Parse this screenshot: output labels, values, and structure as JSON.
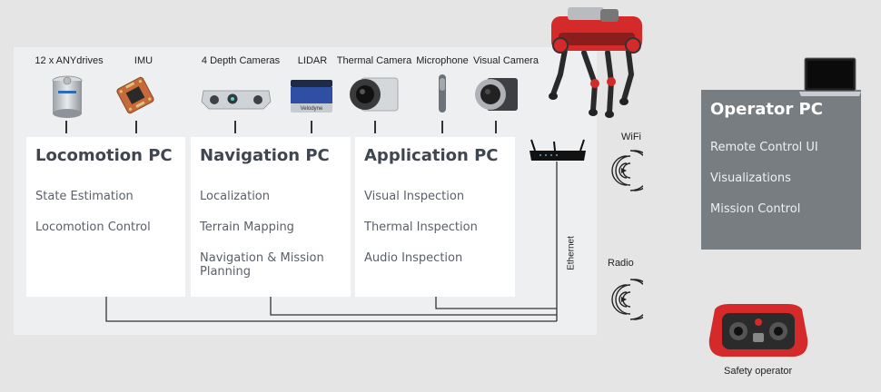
{
  "sensors": [
    {
      "label": "12 x ANYdrives",
      "icon": "anydrive-icon"
    },
    {
      "label": "IMU",
      "icon": "imu-chip-icon"
    },
    {
      "label": "4 Depth Cameras",
      "icon": "depth-camera-icon"
    },
    {
      "label": "LIDAR",
      "icon": "lidar-icon"
    },
    {
      "label": "Thermal Camera",
      "icon": "thermal-camera-icon"
    },
    {
      "label": "Microphone",
      "icon": "microphone-icon"
    },
    {
      "label": "Visual Camera",
      "icon": "visual-camera-icon"
    }
  ],
  "lidar_brand": "Velodyne",
  "computers": [
    {
      "title": "Locomotion PC",
      "items": [
        "State Estimation",
        "Locomotion Control"
      ]
    },
    {
      "title": "Navigation PC",
      "items": [
        "Localization",
        "Terrain Mapping",
        "Navigation & Mission Planning"
      ]
    },
    {
      "title": "Application PC",
      "items": [
        "Visual Inspection",
        "Thermal Inspection",
        "Audio Inspection"
      ]
    }
  ],
  "operator": {
    "title": "Operator PC",
    "items": [
      "Remote Control UI",
      "Visualizations",
      "Mission Control"
    ]
  },
  "links": {
    "wifi": "WiFi",
    "radio": "Radio",
    "ethernet": "Ethernet"
  },
  "safety_operator": "Safety operator",
  "icons": {
    "router": "router-icon",
    "robot": "quadruped-robot-icon",
    "laptop": "laptop-icon",
    "wireless": "wireless-signal-icon",
    "remote": "remote-controller-icon"
  },
  "colors": {
    "robot_red": "#d42a2a",
    "operator_panel": "#787d82",
    "card_title": "#3f4650"
  }
}
